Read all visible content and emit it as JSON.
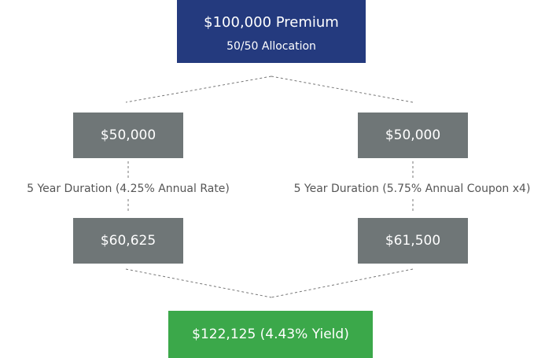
{
  "nodes": [
    {
      "label": "$100,000 Premium",
      "sublabel": "50/50 Allocation"
    },
    {
      "label": "$50,000"
    },
    {
      "label": "$50,000"
    },
    {
      "label": "$60,625"
    },
    {
      "label": "$61,500"
    },
    {
      "label": "$122,125 (4.43% Yield)"
    }
  ],
  "edges": [
    {
      "label": "5 Year Duration  (4.25% Annual Rate)"
    },
    {
      "label": "5 Year Duration  (5.75% Annual Coupon x4)"
    }
  ]
}
